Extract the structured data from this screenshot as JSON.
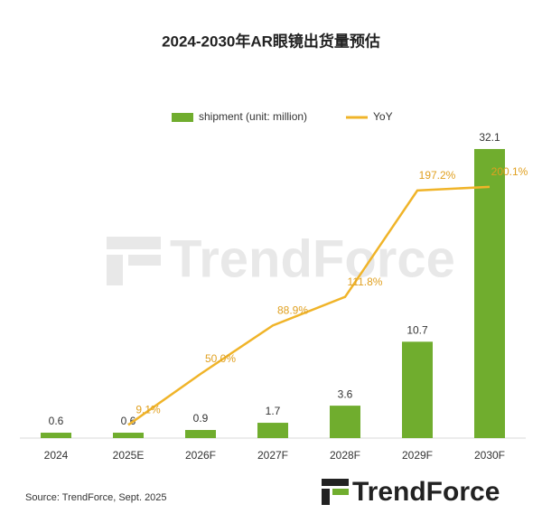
{
  "chart_data": {
    "type": "bar",
    "title": "2024-2030年AR眼镜出货量预估",
    "categories": [
      "2024",
      "2025E",
      "2026F",
      "2027F",
      "2028F",
      "2029F",
      "2030F"
    ],
    "series": [
      {
        "name": "shipment (unit: million)",
        "type": "bar",
        "color": "#70ad2e",
        "values": [
          0.6,
          0.6,
          0.9,
          1.7,
          3.6,
          10.7,
          32.1
        ]
      },
      {
        "name": "YoY",
        "type": "line",
        "axis": "y2",
        "color": "#f0b429",
        "values": [
          null,
          9.1,
          50.0,
          88.9,
          111.8,
          197.2,
          200.1
        ],
        "value_labels": [
          null,
          "9.1%",
          "50.0%",
          "88.9%",
          "111.8%",
          "197.2%",
          "200.1%"
        ]
      }
    ],
    "source": "Source: TrendForce, Sept. 2025",
    "watermark": "TrendForce",
    "logo": "TrendForce"
  }
}
